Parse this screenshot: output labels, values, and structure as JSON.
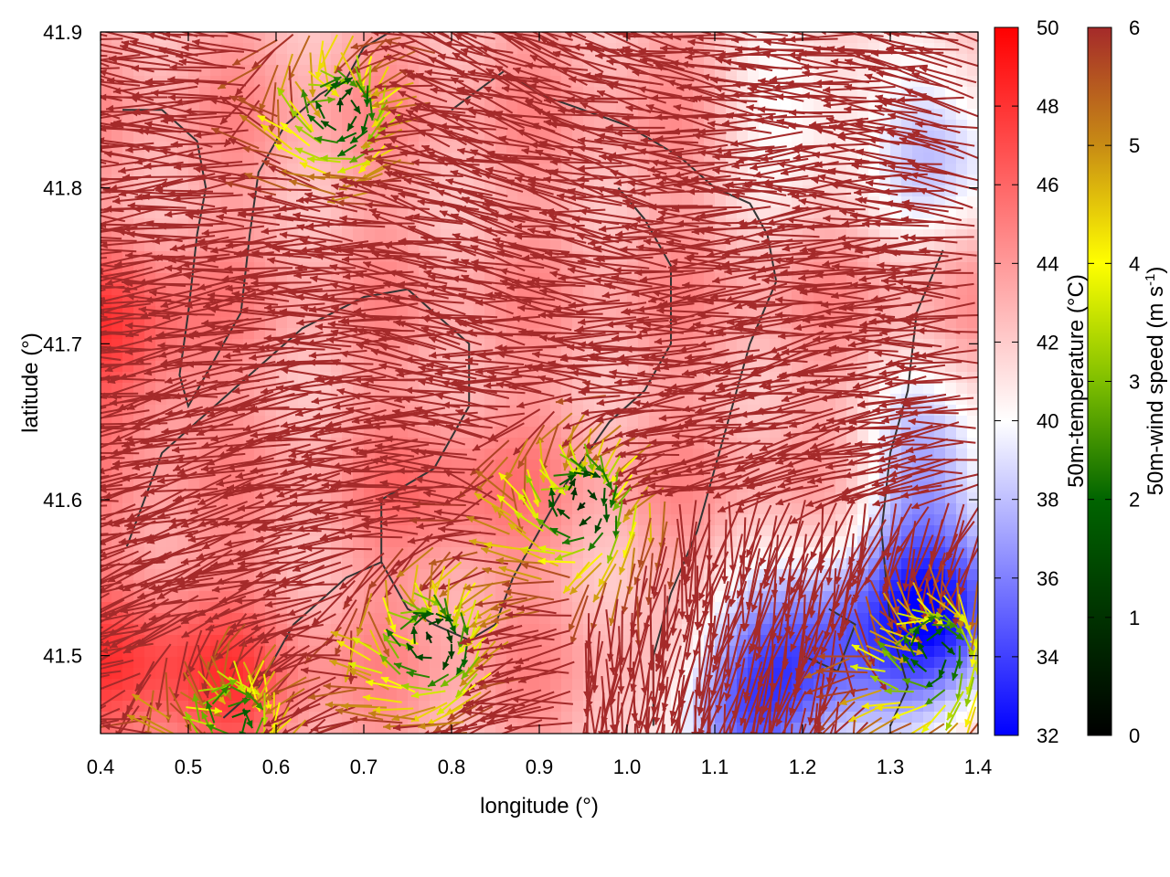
{
  "chart_data": {
    "type": "heatmap",
    "xlabel": "longitude (°)",
    "ylabel": "latitude (°)",
    "xlim": [
      0.4,
      1.4
    ],
    "ylim": [
      41.45,
      41.9
    ],
    "xticks": [
      "0.4",
      "0.5",
      "0.6",
      "0.7",
      "0.8",
      "0.9",
      "1.0",
      "1.1",
      "1.2",
      "1.3",
      "1.4"
    ],
    "yticks": [
      "41.5",
      "41.6",
      "41.7",
      "41.8",
      "41.9"
    ],
    "temperature_colorbar": {
      "label": "50m-temperature (°C)",
      "range": [
        32,
        50
      ],
      "ticks": [
        "32",
        "34",
        "36",
        "38",
        "40",
        "42",
        "44",
        "46",
        "48",
        "50"
      ],
      "colors": {
        "low": "#0000ff",
        "mid": "#ffffff",
        "high": "#ff0000"
      }
    },
    "wind_colorbar": {
      "label_main": "50m-wind speed (m s",
      "label_sup": "-1",
      "label_end": ")",
      "range": [
        0,
        6
      ],
      "ticks": [
        "0",
        "1",
        "2",
        "3",
        "4",
        "5",
        "6"
      ],
      "colors": [
        "#000000",
        "#006400",
        "#7fbf00",
        "#ffff00",
        "#c88c14",
        "#a52a2a"
      ]
    },
    "temperature_field": {
      "base_temp": 43.5,
      "warm_spots": [
        {
          "lon": 0.42,
          "lat": 41.7,
          "temp": 47.5
        },
        {
          "lon": 0.42,
          "lat": 41.5,
          "temp": 47.0
        },
        {
          "lon": 0.55,
          "lat": 41.48,
          "temp": 46.5
        },
        {
          "lon": 0.8,
          "lat": 41.6,
          "temp": 45.5
        }
      ],
      "cool_spots": [
        {
          "lon": 1.36,
          "lat": 41.52,
          "temp": 33.0
        },
        {
          "lon": 1.22,
          "lat": 41.5,
          "temp": 35.5
        },
        {
          "lon": 1.12,
          "lat": 41.47,
          "temp": 37.0
        },
        {
          "lon": 1.35,
          "lat": 41.62,
          "temp": 37.5
        },
        {
          "lon": 1.37,
          "lat": 41.83,
          "temp": 38.0
        },
        {
          "lon": 1.2,
          "lat": 41.85,
          "temp": 39.5
        }
      ]
    },
    "wind_field": {
      "dominant_flow": "westward",
      "calm_zones": [
        {
          "lon": 0.95,
          "lat": 41.6,
          "speed": 0.8
        },
        {
          "lon": 0.78,
          "lat": 41.51,
          "speed": 0.9
        },
        {
          "lon": 0.68,
          "lat": 41.85,
          "speed": 1.2
        },
        {
          "lon": 0.55,
          "lat": 41.46,
          "speed": 2.0
        },
        {
          "lon": 1.35,
          "lat": 41.5,
          "speed": 1.5
        }
      ]
    },
    "contours": [
      {
        "points": [
          [
            0.425,
            41.85
          ],
          [
            0.47,
            41.85
          ],
          [
            0.51,
            41.83
          ],
          [
            0.52,
            41.8
          ],
          [
            0.51,
            41.77
          ],
          [
            0.5,
            41.72
          ],
          [
            0.49,
            41.68
          ],
          [
            0.5,
            41.66
          ],
          [
            0.53,
            41.69
          ],
          [
            0.56,
            41.72
          ],
          [
            0.57,
            41.77
          ],
          [
            0.58,
            41.81
          ],
          [
            0.61,
            41.84
          ],
          [
            0.65,
            41.86
          ],
          [
            0.68,
            41.87
          ],
          [
            0.7,
            41.89
          ],
          [
            0.73,
            41.9
          ]
        ]
      },
      {
        "points": [
          [
            0.43,
            41.57
          ],
          [
            0.47,
            41.63
          ],
          [
            0.55,
            41.67
          ],
          [
            0.63,
            41.71
          ],
          [
            0.7,
            41.73
          ],
          [
            0.75,
            41.735
          ],
          [
            0.78,
            41.72
          ],
          [
            0.82,
            41.7
          ],
          [
            0.82,
            41.66
          ],
          [
            0.78,
            41.62
          ],
          [
            0.72,
            41.6
          ],
          [
            0.72,
            41.56
          ],
          [
            0.75,
            41.53
          ],
          [
            0.78,
            41.52
          ],
          [
            0.82,
            41.51
          ],
          [
            0.85,
            41.52
          ],
          [
            0.87,
            41.55
          ],
          [
            0.93,
            41.61
          ],
          [
            0.98,
            41.65
          ],
          [
            1.02,
            41.67
          ],
          [
            1.05,
            41.7
          ],
          [
            1.05,
            41.75
          ],
          [
            1.02,
            41.78
          ],
          [
            0.99,
            41.8
          ]
        ]
      },
      {
        "points": [
          [
            0.54,
            41.46
          ],
          [
            0.58,
            41.48
          ],
          [
            0.62,
            41.52
          ],
          [
            0.68,
            41.55
          ],
          [
            0.72,
            41.56
          ]
        ]
      },
      {
        "points": [
          [
            0.8,
            41.85
          ],
          [
            0.86,
            41.875
          ],
          [
            0.9,
            41.86
          ],
          [
            0.95,
            41.85
          ],
          [
            1.0,
            41.84
          ],
          [
            1.06,
            41.82
          ],
          [
            1.1,
            41.8
          ],
          [
            1.14,
            41.79
          ],
          [
            1.16,
            41.77
          ],
          [
            1.17,
            41.74
          ],
          [
            1.14,
            41.7
          ],
          [
            1.12,
            41.66
          ],
          [
            1.1,
            41.62
          ],
          [
            1.08,
            41.58
          ],
          [
            1.05,
            41.54
          ],
          [
            1.03,
            41.5
          ],
          [
            1.03,
            41.455
          ]
        ]
      },
      {
        "points": [
          [
            1.3,
            41.455
          ],
          [
            1.32,
            41.48
          ],
          [
            1.3,
            41.52
          ],
          [
            1.29,
            41.58
          ],
          [
            1.3,
            41.63
          ],
          [
            1.32,
            41.67
          ],
          [
            1.33,
            41.72
          ],
          [
            1.36,
            41.76
          ]
        ]
      },
      {
        "points": [
          [
            1.2,
            41.5
          ],
          [
            1.24,
            41.49
          ],
          [
            1.26,
            41.52
          ],
          [
            1.23,
            41.53
          ]
        ]
      }
    ]
  }
}
